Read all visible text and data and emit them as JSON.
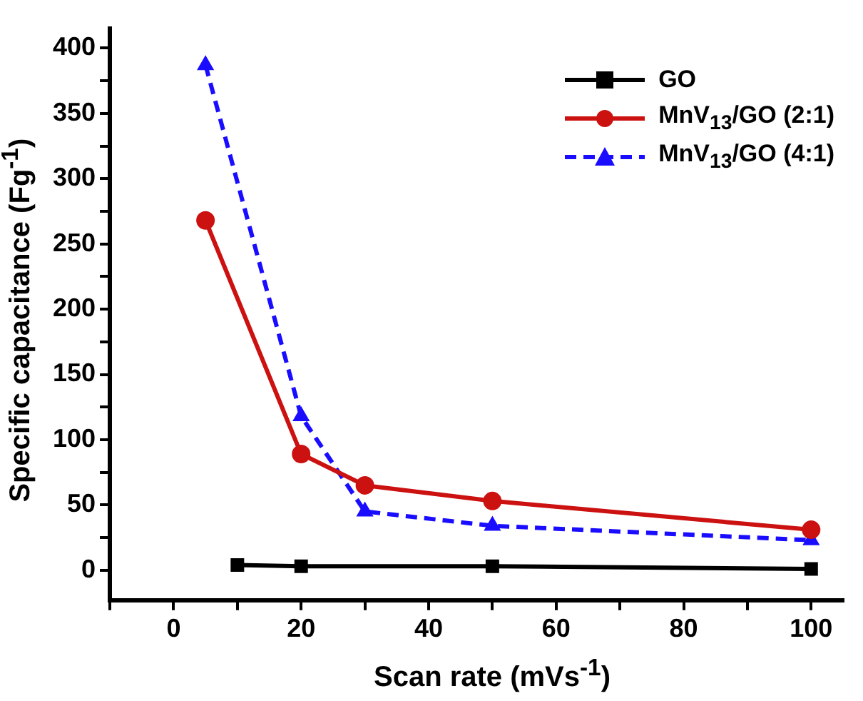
{
  "chart_data": {
    "type": "line",
    "xlabel": "Scan rate (mVs$^{-1}$)",
    "ylabel": "Specific capacitance (Fg$^{-1}$)",
    "xlim": [
      -10,
      105
    ],
    "xticks": [
      {
        "value": -10,
        "label": null
      },
      0,
      {
        "value": 10,
        "label": null
      },
      20,
      {
        "value": 30,
        "label": null
      },
      40,
      {
        "value": 50,
        "label": null
      },
      60,
      {
        "value": 70,
        "label": null
      },
      80,
      {
        "value": 90,
        "label": null
      },
      100
    ],
    "ylim": [
      -23,
      415
    ],
    "yticks": [
      0,
      {
        "value": 25,
        "label": null
      },
      50,
      {
        "value": 75,
        "label": null
      },
      100,
      {
        "value": 125,
        "label": null
      },
      150,
      {
        "value": 175,
        "label": null
      },
      200,
      {
        "value": 225,
        "label": null
      },
      250,
      {
        "value": 275,
        "label": null
      },
      300,
      {
        "value": 325,
        "label": null
      },
      350,
      {
        "value": 375,
        "label": null
      },
      400
    ],
    "grid": false,
    "legend": "top right",
    "series": [
      {
        "name": "GO",
        "color": "#000000",
        "marker": "square",
        "line_style": "solid",
        "x": [
          10,
          20,
          50,
          100
        ],
        "values": [
          4,
          3,
          3,
          1
        ]
      },
      {
        "name": "MnV$_{13}$/GO (2:1)",
        "color": "#cc1111",
        "marker": "circle",
        "line_style": "solid",
        "x": [
          5,
          20,
          30,
          50,
          100
        ],
        "values": [
          268,
          89,
          65,
          53,
          31
        ]
      },
      {
        "name": "MnV$_{13}$/GO (4:1)",
        "color": "#1a0dff",
        "marker": "triangle",
        "line_style": "dashed",
        "x": [
          5,
          20,
          30,
          50,
          100
        ],
        "values": [
          387,
          118,
          45,
          34,
          23
        ]
      }
    ]
  }
}
